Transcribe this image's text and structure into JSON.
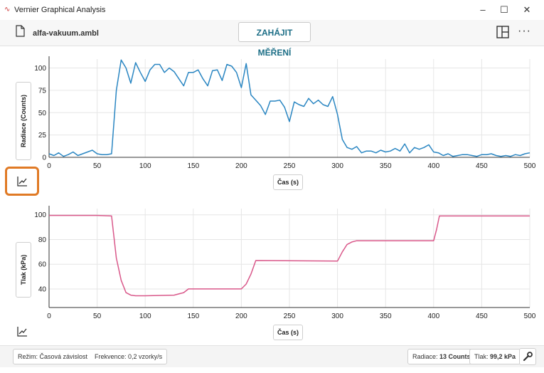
{
  "window": {
    "title": "Vernier Graphical Analysis",
    "minimize": "–",
    "maximize": "☐",
    "close": "✕"
  },
  "toolbar": {
    "file_name": "alfa-vakuum.ambl",
    "start_label": "ZAHÁJIT MĚŘENÍ",
    "more_label": "···"
  },
  "colors": {
    "radiation_series": "#2a86c2",
    "pressure_series": "#d9588a",
    "accent_text": "#1c6e86",
    "highlight_outline": "#e07a25"
  },
  "chart_data": [
    {
      "type": "line",
      "xlabel": "Čas (s)",
      "ylabel": "Radiace (Counts)",
      "xlim": [
        0,
        500
      ],
      "ylim": [
        0,
        110
      ],
      "xticks": [
        "0",
        "50",
        "100",
        "150",
        "200",
        "250",
        "300",
        "350",
        "400",
        "450",
        "500"
      ],
      "yticks": [
        "0",
        "25",
        "50",
        "75",
        "100"
      ],
      "grid": true,
      "series": [
        {
          "x": [
            0,
            5,
            10,
            15,
            20,
            25,
            30,
            35,
            40,
            45,
            50,
            55,
            60,
            65,
            70,
            75,
            80,
            85,
            90,
            95,
            100,
            105,
            110,
            115,
            120,
            125,
            130,
            135,
            140,
            145,
            150,
            155,
            160,
            165,
            170,
            175,
            180,
            185,
            190,
            195,
            200,
            205,
            210,
            215,
            220,
            225,
            230,
            235,
            240,
            245,
            250,
            255,
            260,
            265,
            270,
            275,
            280,
            285,
            290,
            295,
            300,
            305,
            310,
            315,
            320,
            325,
            330,
            335,
            340,
            345,
            350,
            355,
            360,
            365,
            370,
            375,
            380,
            385,
            390,
            395,
            400,
            405,
            410,
            415,
            420,
            425,
            430,
            435,
            440,
            445,
            450,
            455,
            460,
            465,
            470,
            475,
            480,
            485,
            490,
            495,
            500
          ],
          "y": [
            4,
            2,
            5,
            1,
            3,
            6,
            2,
            4,
            6,
            8,
            4,
            3,
            3,
            4,
            75,
            109,
            100,
            83,
            106,
            95,
            85,
            98,
            104,
            104,
            95,
            100,
            96,
            88,
            80,
            95,
            95,
            98,
            88,
            80,
            97,
            98,
            86,
            104,
            102,
            95,
            78,
            105,
            70,
            64,
            58,
            48,
            63,
            63,
            64,
            56,
            40,
            62,
            59,
            57,
            66,
            60,
            64,
            59,
            57,
            68,
            48,
            20,
            11,
            9,
            12,
            5,
            7,
            7,
            5,
            8,
            6,
            7,
            10,
            7,
            15,
            5,
            11,
            9,
            11,
            14,
            6,
            5,
            2,
            4,
            1,
            2,
            3,
            3,
            2,
            1,
            3,
            3,
            4,
            2,
            1,
            2,
            1,
            3,
            2,
            4,
            5
          ]
        }
      ]
    },
    {
      "type": "line",
      "xlabel": "Čas (s)",
      "ylabel": "Tlak (kPa)",
      "xlim": [
        0,
        500
      ],
      "ylim": [
        25,
        105
      ],
      "xticks": [
        "0",
        "50",
        "100",
        "150",
        "200",
        "250",
        "300",
        "350",
        "400",
        "450",
        "500"
      ],
      "yticks": [
        "40",
        "60",
        "80",
        "100"
      ],
      "grid": true,
      "series": [
        {
          "x": [
            0,
            50,
            65,
            70,
            75,
            80,
            85,
            90,
            100,
            130,
            140,
            145,
            200,
            205,
            210,
            215,
            300,
            305,
            310,
            315,
            320,
            400,
            403,
            406,
            500
          ],
          "y": [
            99.5,
            99.5,
            99,
            65,
            47,
            37,
            35,
            34.5,
            34.5,
            35,
            37,
            40,
            40,
            44,
            52,
            63,
            62.5,
            70,
            76,
            78,
            79,
            79,
            88,
            99,
            99
          ]
        }
      ]
    }
  ],
  "status": {
    "mode": "Režim: Časová závislost",
    "frequency": "Frekvence: 0,2 vzorky/s",
    "radiation_label": "Radiace:",
    "radiation_value": "13 Counts",
    "pressure_label": "Tlak:",
    "pressure_value": "99,2 kPa"
  }
}
